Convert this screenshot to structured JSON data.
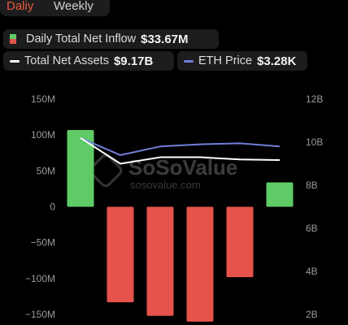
{
  "tabs": {
    "daily": "Daliy",
    "weekly": "Weekly"
  },
  "legend": {
    "inflow_label": "Daily Total Net Inflow",
    "inflow_value": "$33.67M",
    "assets_label": "Total Net Assets",
    "assets_value": "$9.17B",
    "eth_label": "ETH Price",
    "eth_value": "$3.28K"
  },
  "watermark": {
    "brand": "SoSoValue",
    "url": "sosovalue.com"
  },
  "colors": {
    "positive": "#5fcb66",
    "negative": "#e5534b",
    "net_assets": "#ffffff",
    "eth_price": "#6f7fd8",
    "active_tab": "#ea5a3c"
  },
  "chart_data": {
    "type": "bar",
    "left_axis": {
      "ticks": [
        150,
        100,
        50,
        0,
        -50,
        -100,
        -150
      ],
      "tick_labels": [
        "150M",
        "100M",
        "50M",
        "0",
        "−50M",
        "−100M",
        "−150M"
      ],
      "range": [
        -150,
        150
      ],
      "unit": "M"
    },
    "right_axis": {
      "ticks": [
        12,
        10,
        8,
        6,
        4,
        2
      ],
      "tick_labels": [
        "12B",
        "10B",
        "8B",
        "6B",
        "4B",
        "2B"
      ],
      "range": [
        2,
        12
      ],
      "unit": "B"
    },
    "series": [
      {
        "name": "Daily Total Net Inflow",
        "type": "bar",
        "axis": "left",
        "values": [
          107,
          -133,
          -152,
          -160,
          -98,
          34
        ]
      },
      {
        "name": "Total Net Assets",
        "type": "line",
        "axis": "right",
        "values": [
          10.2,
          9.0,
          9.3,
          9.3,
          9.2,
          9.17
        ]
      },
      {
        "name": "ETH Price",
        "type": "line",
        "axis": "right",
        "values": [
          10.2,
          9.4,
          9.8,
          9.9,
          9.95,
          9.8
        ]
      }
    ],
    "grid": false
  }
}
